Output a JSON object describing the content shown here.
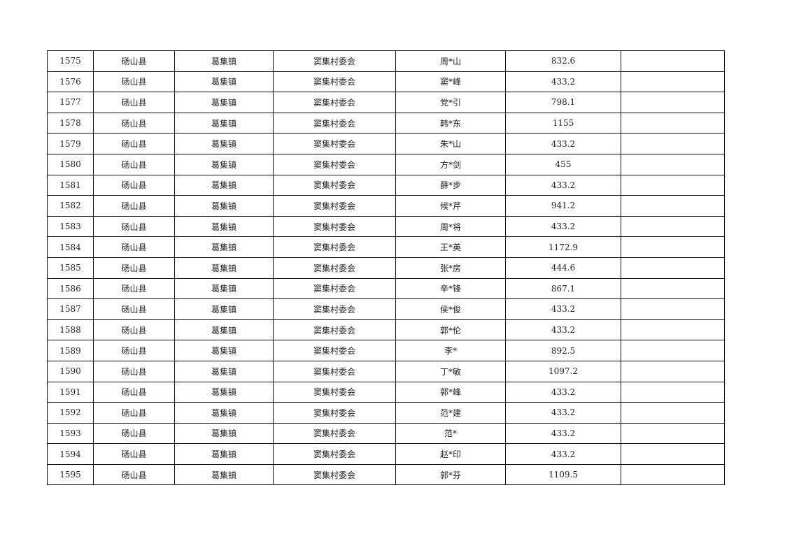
{
  "table": {
    "rows": [
      [
        "1575",
        "砀山县",
        "葛集镇",
        "窦集村委会",
        "周*山",
        "832.6",
        ""
      ],
      [
        "1576",
        "砀山县",
        "葛集镇",
        "窦集村委会",
        "窦*峰",
        "433.2",
        ""
      ],
      [
        "1577",
        "砀山县",
        "葛集镇",
        "窦集村委会",
        "党*引",
        "798.1",
        ""
      ],
      [
        "1578",
        "砀山县",
        "葛集镇",
        "窦集村委会",
        "韩*东",
        "1155",
        ""
      ],
      [
        "1579",
        "砀山县",
        "葛集镇",
        "窦集村委会",
        "朱*山",
        "433.2",
        ""
      ],
      [
        "1580",
        "砀山县",
        "葛集镇",
        "窦集村委会",
        "方*剑",
        "455",
        ""
      ],
      [
        "1581",
        "砀山县",
        "葛集镇",
        "窦集村委会",
        "薛*步",
        "433.2",
        ""
      ],
      [
        "1582",
        "砀山县",
        "葛集镇",
        "窦集村委会",
        "候*芹",
        "941.2",
        ""
      ],
      [
        "1583",
        "砀山县",
        "葛集镇",
        "窦集村委会",
        "周*将",
        "433.2",
        ""
      ],
      [
        "1584",
        "砀山县",
        "葛集镇",
        "窦集村委会",
        "王*英",
        "1172.9",
        ""
      ],
      [
        "1585",
        "砀山县",
        "葛集镇",
        "窦集村委会",
        "张*房",
        "444.6",
        ""
      ],
      [
        "1586",
        "砀山县",
        "葛集镇",
        "窦集村委会",
        "辛*锋",
        "867.1",
        ""
      ],
      [
        "1587",
        "砀山县",
        "葛集镇",
        "窦集村委会",
        "侯*俊",
        "433.2",
        ""
      ],
      [
        "1588",
        "砀山县",
        "葛集镇",
        "窦集村委会",
        "郭*伦",
        "433.2",
        ""
      ],
      [
        "1589",
        "砀山县",
        "葛集镇",
        "窦集村委会",
        "李*",
        "892.5",
        ""
      ],
      [
        "1590",
        "砀山县",
        "葛集镇",
        "窦集村委会",
        "丁*敏",
        "1097.2",
        ""
      ],
      [
        "1591",
        "砀山县",
        "葛集镇",
        "窦集村委会",
        "郭*峰",
        "433.2",
        ""
      ],
      [
        "1592",
        "砀山县",
        "葛集镇",
        "窦集村委会",
        "范*建",
        "433.2",
        ""
      ],
      [
        "1593",
        "砀山县",
        "葛集镇",
        "窦集村委会",
        "范*",
        "433.2",
        ""
      ],
      [
        "1594",
        "砀山县",
        "葛集镇",
        "窦集村委会",
        "赵*印",
        "433.2",
        ""
      ],
      [
        "1595",
        "砀山县",
        "葛集镇",
        "窦集村委会",
        "郭*芬",
        "1109.5",
        ""
      ]
    ]
  }
}
